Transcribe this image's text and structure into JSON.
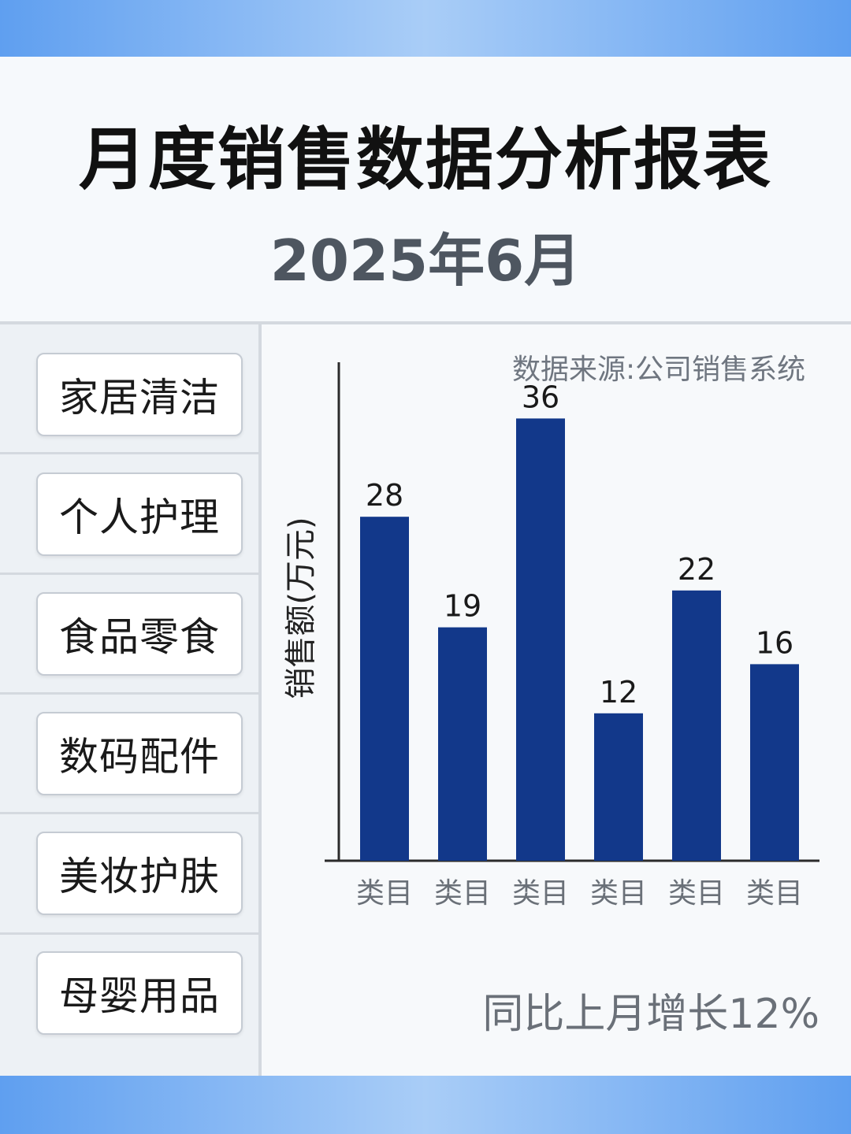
{
  "header": {
    "title": "月度销售数据分析报表",
    "subtitle": "2025年6月"
  },
  "sidebar": {
    "items": [
      {
        "label": "家居清洁"
      },
      {
        "label": "个人护理"
      },
      {
        "label": "食品零食"
      },
      {
        "label": "数码配件"
      },
      {
        "label": "美妆护肤"
      },
      {
        "label": "母婴用品"
      }
    ]
  },
  "notes": {
    "source": "数据来源:公司销售系统",
    "yoy": "同比上月增长12%"
  },
  "colors": {
    "bar": "#12388a",
    "axis": "#2b2b2b",
    "band": "#7fb4f2"
  },
  "chart_data": {
    "type": "bar",
    "title": "",
    "xlabel": "",
    "ylabel": "销售额(万元)",
    "categories": [
      "类目",
      "类目",
      "类目",
      "类目",
      "类目",
      "类目"
    ],
    "values": [
      28,
      19,
      36,
      12,
      22,
      16
    ],
    "data_labels": [
      "28",
      "19",
      "36",
      "12",
      "22",
      "16"
    ],
    "ylim": [
      0,
      40
    ],
    "grid": false,
    "legend": "none"
  }
}
